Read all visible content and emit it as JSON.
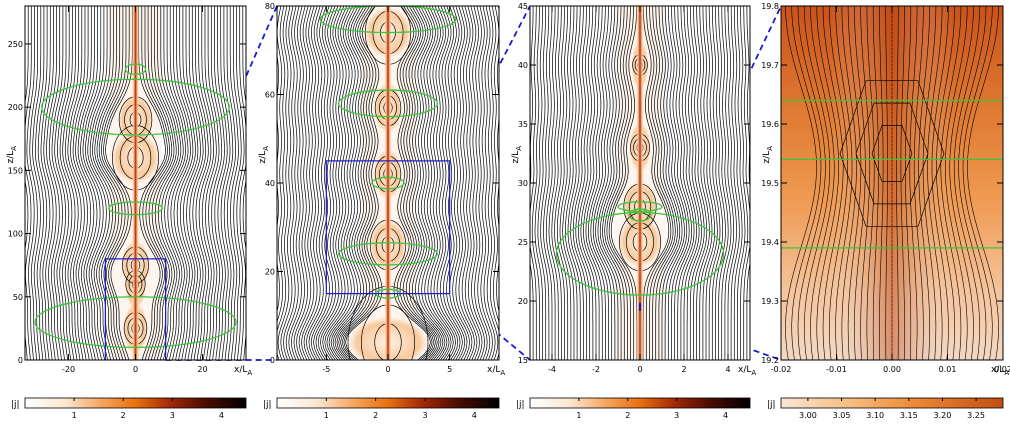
{
  "figure": {
    "colorbar_label": "|j|",
    "zoom_link_color": "#1a1ad0"
  },
  "chart_data": [
    {
      "type": "heatmap",
      "title": "",
      "xlabel": "x/L_A",
      "ylabel": "z/L_A",
      "xlim": [
        -33,
        33
      ],
      "ylim": [
        0,
        280
      ],
      "xticks": [
        -20,
        0,
        20
      ],
      "xtick_labels": [
        "-20",
        "0",
        "20"
      ],
      "yticks": [
        0,
        50,
        100,
        150,
        200,
        250
      ],
      "ytick_labels": [
        "0",
        "50",
        "100",
        "150",
        "200",
        "250"
      ],
      "colorbar": {
        "label": "|j|",
        "range": [
          0,
          4.5
        ],
        "ticks": [
          1,
          2,
          3,
          4
        ],
        "tick_labels": [
          "1",
          "2",
          "3",
          "4"
        ]
      },
      "current_sheet": {
        "x": 0,
        "z_range": [
          0,
          280
        ],
        "blobs": [
          {
            "z": 25,
            "w": 2.5
          },
          {
            "z": 60,
            "w": 2
          },
          {
            "z": 75,
            "w": 3
          },
          {
            "z": 160,
            "w": 6
          },
          {
            "z": 190,
            "w": 4
          }
        ]
      },
      "green_contours": [
        {
          "x": 0,
          "z": 30,
          "rx": 30,
          "rz": 20
        },
        {
          "x": 0,
          "z": 120,
          "rx": 8,
          "rz": 5
        },
        {
          "x": 0,
          "z": 200,
          "rx": 28,
          "rz": 22
        },
        {
          "x": 0,
          "z": 230,
          "rx": 3,
          "rz": 4
        }
      ],
      "zoom_box": {
        "x": [
          -9,
          9
        ],
        "z": [
          0,
          80
        ]
      }
    },
    {
      "type": "heatmap",
      "title": "",
      "xlabel": "x/L_A",
      "ylabel": "z/L_A",
      "xlim": [
        -9,
        9
      ],
      "ylim": [
        0,
        80
      ],
      "xticks": [
        -5,
        0,
        5
      ],
      "xtick_labels": [
        "-5",
        "0",
        "5"
      ],
      "yticks": [
        0,
        20,
        40,
        60,
        80
      ],
      "ytick_labels": [
        "0",
        "20",
        "40",
        "60",
        "80"
      ],
      "colorbar": {
        "label": "|j|",
        "range": [
          0,
          4.5
        ],
        "ticks": [
          1,
          2,
          3,
          4
        ],
        "tick_labels": [
          "1",
          "2",
          "3",
          "4"
        ]
      },
      "current_sheet": {
        "x": 0,
        "z_range": [
          0,
          80
        ],
        "blobs": [
          {
            "z": 4,
            "w": 3
          },
          {
            "z": 26,
            "w": 1.2
          },
          {
            "z": 42,
            "w": 0.8
          },
          {
            "z": 57,
            "w": 0.8
          },
          {
            "z": 74,
            "w": 1.6
          }
        ]
      },
      "green_contours": [
        {
          "x": 0,
          "z": 24,
          "rx": 4,
          "rz": 2.5
        },
        {
          "x": 0,
          "z": 40,
          "rx": 1.3,
          "rz": 1.3
        },
        {
          "x": 0,
          "z": 58,
          "rx": 4,
          "rz": 3
        },
        {
          "x": 0,
          "z": 77,
          "rx": 5.5,
          "rz": 3
        },
        {
          "x": 0,
          "z": 15,
          "rx": 1,
          "rz": 1
        }
      ],
      "zoom_box": {
        "x": [
          -5,
          5
        ],
        "z": [
          15,
          45
        ]
      }
    },
    {
      "type": "heatmap",
      "title": "",
      "xlabel": "x/L_A",
      "ylabel": "z/L_A",
      "xlim": [
        -5,
        5
      ],
      "ylim": [
        15,
        45
      ],
      "xticks": [
        -4,
        -2,
        0,
        2,
        4
      ],
      "xtick_labels": [
        "-4",
        "-2",
        "0",
        "2",
        "4"
      ],
      "yticks": [
        15,
        20,
        25,
        30,
        35,
        40,
        45
      ],
      "ytick_labels": [
        "15",
        "20",
        "25",
        "30",
        "35",
        "40",
        "45"
      ],
      "colorbar": {
        "label": "|j|",
        "range": [
          0,
          4.5
        ],
        "ticks": [
          1,
          2,
          3,
          4
        ],
        "tick_labels": [
          "1",
          "2",
          "3",
          "4"
        ]
      },
      "current_sheet": {
        "x": 0,
        "z_range": [
          15,
          45
        ],
        "blobs": [
          {
            "z": 25,
            "w": 0.8
          },
          {
            "z": 28,
            "w": 0.6
          },
          {
            "z": 33,
            "w": 0.3
          },
          {
            "z": 40,
            "w": 0.2
          }
        ]
      },
      "green_contours": [
        {
          "x": 0,
          "z": 24,
          "rx": 3.8,
          "rz": 3.5
        },
        {
          "x": 0,
          "z": 27.3,
          "rx": 0.5,
          "rz": 0.5
        },
        {
          "x": 0,
          "z": 28,
          "rx": 1,
          "rz": 0.4
        }
      ],
      "zoom_box": {
        "x": [
          -0.02,
          0.02
        ],
        "z": [
          19.2,
          19.8
        ]
      }
    },
    {
      "type": "heatmap",
      "title": "",
      "xlabel": "x/L_A",
      "ylabel": "z/L_A",
      "xlim": [
        -0.02,
        0.02
      ],
      "ylim": [
        19.2,
        19.8
      ],
      "xticks": [
        -0.02,
        -0.01,
        0.0,
        0.01,
        0.02
      ],
      "xtick_labels": [
        "-0.02",
        "-0.01",
        "0.00",
        "0.01",
        "0.02"
      ],
      "yticks": [
        19.2,
        19.3,
        19.4,
        19.5,
        19.6,
        19.7,
        19.8
      ],
      "ytick_labels": [
        "19.2",
        "19.3",
        "19.4",
        "19.5",
        "19.6",
        "19.7",
        "19.8"
      ],
      "colorbar": {
        "label": "|j|",
        "range": [
          2.96,
          3.29
        ],
        "ticks": [
          3.0,
          3.05,
          3.1,
          3.15,
          3.2,
          3.25
        ],
        "tick_labels": [
          "3.00",
          "3.05",
          "3.10",
          "3.15",
          "3.20",
          "3.25"
        ]
      },
      "green_levels": [
        19.39,
        19.54,
        19.64
      ]
    }
  ]
}
